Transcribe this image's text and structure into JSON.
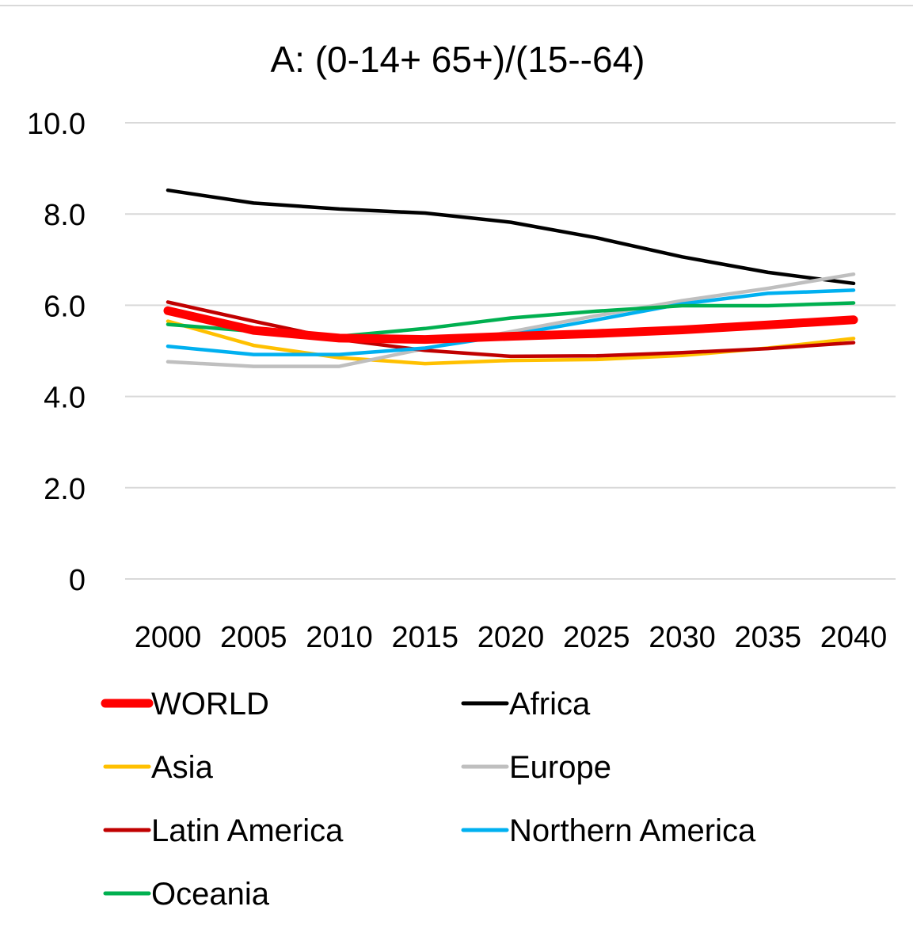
{
  "chart_data": {
    "type": "line",
    "title": "A:  (0-14+ 65+)/(15--64)",
    "xlabel": "",
    "ylabel": "",
    "x": [
      2000,
      2005,
      2010,
      2015,
      2020,
      2025,
      2030,
      2035,
      2040
    ],
    "ylim": [
      0,
      10
    ],
    "y_ticks": [
      "0",
      "2.0",
      "4.0",
      "6.0",
      "8.0",
      "10.0"
    ],
    "y_tick_values": [
      0,
      2,
      4,
      6,
      8,
      10
    ],
    "grid": true,
    "legend_position": "bottom",
    "series": [
      {
        "name": "WORLD",
        "color": "#ff0000",
        "emphasis": true,
        "values": [
          5.88,
          5.45,
          5.28,
          5.25,
          5.32,
          5.38,
          5.46,
          5.57,
          5.68
        ]
      },
      {
        "name": "Africa",
        "color": "#000000",
        "values": [
          8.52,
          8.24,
          8.11,
          8.02,
          7.82,
          7.48,
          7.06,
          6.72,
          6.48
        ]
      },
      {
        "name": "Asia",
        "color": "#ffc000",
        "values": [
          5.65,
          5.12,
          4.85,
          4.72,
          4.79,
          4.81,
          4.9,
          5.06,
          5.27
        ]
      },
      {
        "name": "Europe",
        "color": "#bfbfbf",
        "values": [
          4.76,
          4.66,
          4.66,
          5.05,
          5.42,
          5.77,
          6.1,
          6.37,
          6.68
        ]
      },
      {
        "name": "Latin America",
        "color": "#c00000",
        "values": [
          6.07,
          5.65,
          5.25,
          5.01,
          4.88,
          4.89,
          4.96,
          5.05,
          5.18
        ]
      },
      {
        "name": "Northern America",
        "color": "#00b0f0",
        "values": [
          5.1,
          4.92,
          4.92,
          5.06,
          5.35,
          5.68,
          6.03,
          6.26,
          6.33
        ]
      },
      {
        "name": "Oceania",
        "color": "#00b050",
        "values": [
          5.58,
          5.43,
          5.32,
          5.49,
          5.72,
          5.87,
          5.99,
          5.99,
          6.05
        ]
      }
    ]
  }
}
